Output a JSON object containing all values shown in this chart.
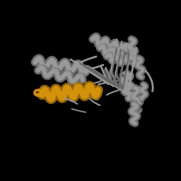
{
  "background_color": "#000000",
  "gray_color": "#999999",
  "gray_dark": "#666666",
  "highlight_color": "#D4920A",
  "figsize": [
    2.0,
    2.0
  ],
  "dpi": 100
}
